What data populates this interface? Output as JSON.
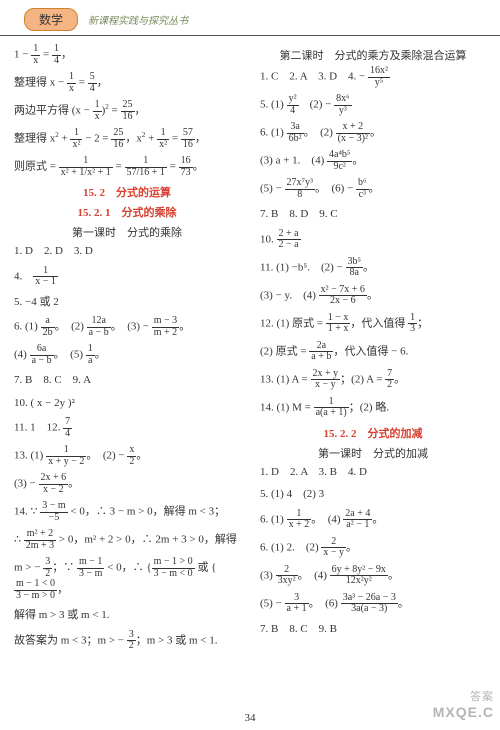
{
  "header": {
    "subject": "数学",
    "series": "新课程实践与探究丛书"
  },
  "left": {
    "lines": {
      "l1_a": "1 − ",
      "l1_frac1_n": "1",
      "l1_frac1_d": "x",
      "l1_b": " = ",
      "l1_frac2_n": "1",
      "l1_frac2_d": "4",
      "l1_c": "，",
      "l2_a": "整理得 x − ",
      "l2_frac_n": "1",
      "l2_frac_d": "x",
      "l2_b": " = ",
      "l2_frac2_n": "5",
      "l2_frac2_d": "4",
      "l2_c": "，",
      "l3_a": "两边平方得 (x − ",
      "l3_frac_n": "1",
      "l3_frac_d": "x",
      "l3_b": ")",
      "l3_sup": "2",
      "l3_c": " = ",
      "l3_frac2_n": "25",
      "l3_frac2_d": "16",
      "l3_d": "，",
      "l4_a": "整理得 x",
      "l4_sup1": "2",
      "l4_b": " + ",
      "l4_frac_n": "1",
      "l4_frac_d": "x²",
      "l4_c": " − 2 = ",
      "l4_frac2_n": "25",
      "l4_frac2_d": "16",
      "l4_d": "，x",
      "l4_sup2": "2",
      "l4_e": " + ",
      "l4_frac3_n": "1",
      "l4_frac3_d": "x²",
      "l4_f": " = ",
      "l4_frac4_n": "57",
      "l4_frac4_d": "16",
      "l4_g": "，",
      "l5_a": "则原式 = ",
      "l5_frac1_n": "1",
      "l5_frac1_d": "x² + 1/x² + 1",
      "l5_b": " = ",
      "l5_frac2_n": "1",
      "l5_frac2_d": "57/16 + 1",
      "l5_c": " = ",
      "l5_frac3_n": "16",
      "l5_frac3_d": "73",
      "l5_d": "。"
    },
    "h1": "15. 2　分式的运算",
    "h2": "15. 2. 1　分式的乘除",
    "h3": "第一课时　分式的乘除",
    "items": {
      "i1": "1. D　2. D　3. D",
      "i4_a": "4.　",
      "i4_frac_n": "1",
      "i4_frac_d": "x − 1",
      "i5": "5. −4 或 2",
      "i6_a": "6. (1) ",
      "i6_f1_n": "a",
      "i6_f1_d": "2b",
      "i6_b": "。　(2) ",
      "i6_f2_n": "12a",
      "i6_f2_d": "a − b",
      "i6_c": "。　(3) − ",
      "i6_f3_n": "m − 3",
      "i6_f3_d": "m + 2",
      "i6_d": "。",
      "i6e_a": "(4) ",
      "i6e_f_n": "6a",
      "i6e_f_d": "a − b",
      "i6e_b": "。　(5) ",
      "i6e_f2_n": "1",
      "i6e_f2_d": "a",
      "i6e_c": "。",
      "i7": "7. B　8. C　9. A",
      "i10": "10. ( x − 2y )²",
      "i11_a": "11. 1　12. ",
      "i11_f_n": "7",
      "i11_f_d": "4",
      "i13_a": "13. (1) ",
      "i13_f1_n": "1",
      "i13_f1_d": "x + y − 2",
      "i13_b": "。　(2) − ",
      "i13_f2_n": "x",
      "i13_f2_d": "2",
      "i13_c": "。",
      "i13e_a": "(3) − ",
      "i13e_f_n": "2x + 6",
      "i13e_f_d": "x − 2",
      "i13e_b": "。",
      "i14_a": "14. ∵ ",
      "i14_f_n": "3 − m",
      "i14_f_d": "−5",
      "i14_b": " < 0，∴ 3 − m > 0，解得 m < 3；",
      "i14b_a": "∴ ",
      "i14b_f_n": "m² + 2",
      "i14b_f_d": "2m + 3",
      "i14b_b": " > 0，m² + 2 > 0，∴ 2m + 3 > 0，解得",
      "i14c_a": "m > − ",
      "i14c_f_n": "3",
      "i14c_f_d": "2",
      "i14c_b": "；∵ ",
      "i14c_f2_n": "m − 1",
      "i14c_f2_d": "3 − m",
      "i14c_c": " < 0，∴ {",
      "i14c_sys1": "m − 1 > 0",
      "i14c_sys2": "3 − m < 0",
      "i14c_d": " 或 {",
      "i14c_sys3": "m − 1 < 0",
      "i14c_sys4": "3 − m > 0",
      "i14c_e": "，",
      "i14d": "解得 m > 3 或 m < 1.",
      "i14e_a": "故答案为 m < 3；m > − ",
      "i14e_f_n": "3",
      "i14e_f_d": "2",
      "i14e_b": "；m > 3 或 m < 1."
    }
  },
  "right": {
    "h1": "第二课时　分式的乘方及乘除混合运算",
    "items": {
      "r1_a": "1. C　2. A　3. D　4. − ",
      "r1_f_n": "16x²",
      "r1_f_d": "y⁵",
      "r5_a": "5. (1) ",
      "r5_f1_n": "y²",
      "r5_f1_d": "4",
      "r5_b": "　(2) − ",
      "r5_f2_n": "8x⁶",
      "r5_f2_d": "y³",
      "r6_a": "6. (1) ",
      "r6_f1_n": "3a",
      "r6_f1_d": "6b²",
      "r6_b": "。　(2) ",
      "r6_f2_n": "x + 2",
      "r6_f2_d": "(x − 3)²",
      "r6_c": "。",
      "r6e_a": "(3) a + 1.　(4) ",
      "r6e_f_n": "4a⁴b⁵",
      "r6e_f_d": "9c²",
      "r6e_b": "。",
      "r6f_a": "(5) − ",
      "r6f_f1_n": "27x⁷y³",
      "r6f_f1_d": "8",
      "r6f_b": "。　(6) − ",
      "r6f_f2_n": "b⁶",
      "r6f_f2_d": "c³",
      "r6f_c": "。",
      "r7": "7. B　8. D　9. C",
      "r10_a": "10. ",
      "r10_f_n": "2 + a",
      "r10_f_d": "2 − a",
      "r11_a": "11. (1) −b⁵.　(2) − ",
      "r11_f_n": "3b⁵",
      "r11_f_d": "8a",
      "r11_b": "。",
      "r11e_a": "(3) − y.　(4) ",
      "r11e_f_n": "x² − 7x + 6",
      "r11e_f_d": "2x − 6",
      "r11e_b": "。",
      "r12_a": "12. (1) 原式 = ",
      "r12_f_n": "1 − x",
      "r12_f_d": "1 + x",
      "r12_b": "，代入值得 ",
      "r12_f2_n": "1",
      "r12_f2_d": "3",
      "r12_c": "；",
      "r12e_a": "(2) 原式 = ",
      "r12e_f_n": "2a",
      "r12e_f_d": "a + b",
      "r12e_b": "，代入值得 − 6.",
      "r13_a": "13. (1) A = ",
      "r13_f_n": "2x + y",
      "r13_f_d": "x − y",
      "r13_b": "；(2) A = ",
      "r13_f2_n": "7",
      "r13_f2_d": "2",
      "r13_c": "。",
      "r14_a": "14. (1) M = ",
      "r14_f_n": "1",
      "r14_f_d": "a(a + 1)",
      "r14_b": "；(2) 略."
    },
    "h2": "15. 2. 2　分式的加减",
    "h3": "第一课时　分式的加减",
    "items2": {
      "s1": "1. D　2. A　3. B　4. D",
      "s5": "5. (1) 4　(2) 3",
      "s6_a": "6. (1) ",
      "s6_f1_n": "1",
      "s6_f1_d": "x + 2",
      "s6_b": "。　(4) ",
      "s6_f2_n": "2a + 4",
      "s6_f2_d": "a² − 1",
      "s6_c": "。",
      "s6e_a": "6. (1) 2.　(2) ",
      "s6e_f_n": "2",
      "s6e_f_d": "x − y",
      "s6e_b": "。",
      "s6f_a": "(3) ",
      "s6f_f1_n": "2",
      "s6f_f1_d": "3xy²",
      "s6f_b": "。　(4) ",
      "s6f_f2_n": "6y + 8y² − 9x",
      "s6f_f2_d": "12x²y²",
      "s6f_c": "。",
      "s6g_a": "(5) − ",
      "s6g_f1_n": "3",
      "s6g_f1_d": "a + 1",
      "s6g_b": "。　(6) ",
      "s6g_f2_n": "3a³ − 26a − 3",
      "s6g_f2_d": "3a(a − 3)",
      "s6g_c": "。",
      "s7": "7. B　8. C　9. B"
    }
  },
  "pagenum": "34",
  "watermark": {
    "top": "答案",
    "bot": "MXQE.C"
  }
}
